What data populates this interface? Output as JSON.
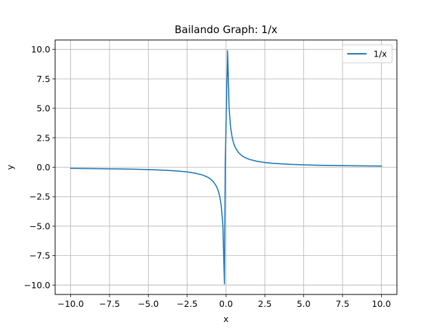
{
  "chart_data": {
    "type": "line",
    "title": "Bailando Graph: 1/x",
    "xlabel": "x",
    "ylabel": "y",
    "xlim": [
      -11,
      11
    ],
    "ylim": [
      -10.8,
      10.8
    ],
    "xticks": [
      -10.0,
      -7.5,
      -5.0,
      -2.5,
      0.0,
      2.5,
      5.0,
      7.5,
      10.0
    ],
    "xtick_labels": [
      "−10.0",
      "−7.5",
      "−5.0",
      "−2.5",
      "0.0",
      "2.5",
      "5.0",
      "7.5",
      "10.0"
    ],
    "yticks": [
      -10.0,
      -7.5,
      -5.0,
      -2.5,
      0.0,
      2.5,
      5.0,
      7.5,
      10.0
    ],
    "ytick_labels": [
      "−10.0",
      "−7.5",
      "−5.0",
      "−2.5",
      "0.0",
      "2.5",
      "5.0",
      "7.5",
      "10.0"
    ],
    "grid": true,
    "legend_position": "top-right",
    "series": [
      {
        "name": "1/x",
        "color": "#1f77b4",
        "x": [
          -10,
          -9,
          -8,
          -7,
          -6,
          -5,
          -4,
          -3,
          -2.5,
          -2,
          -1.5,
          -1.2,
          -1,
          -0.8,
          -0.6,
          -0.5,
          -0.4,
          -0.3,
          -0.2,
          -0.101,
          -0.05,
          0.101,
          0.2,
          0.3,
          0.4,
          0.5,
          0.6,
          0.8,
          1,
          1.2,
          1.5,
          2,
          2.5,
          3,
          4,
          5,
          6,
          7,
          8,
          9,
          10
        ],
        "y": [
          -0.1,
          -0.111,
          -0.125,
          -0.143,
          -0.167,
          -0.2,
          -0.25,
          -0.333,
          -0.4,
          -0.5,
          -0.667,
          -0.833,
          -1.0,
          -1.25,
          -1.667,
          -2.0,
          -2.5,
          -3.333,
          -5.0,
          -9.9,
          0.3,
          9.9,
          5.0,
          3.333,
          2.5,
          2.0,
          1.667,
          1.25,
          1.0,
          0.833,
          0.667,
          0.5,
          0.4,
          0.333,
          0.25,
          0.2,
          0.167,
          0.143,
          0.125,
          0.111,
          0.1
        ]
      }
    ]
  }
}
